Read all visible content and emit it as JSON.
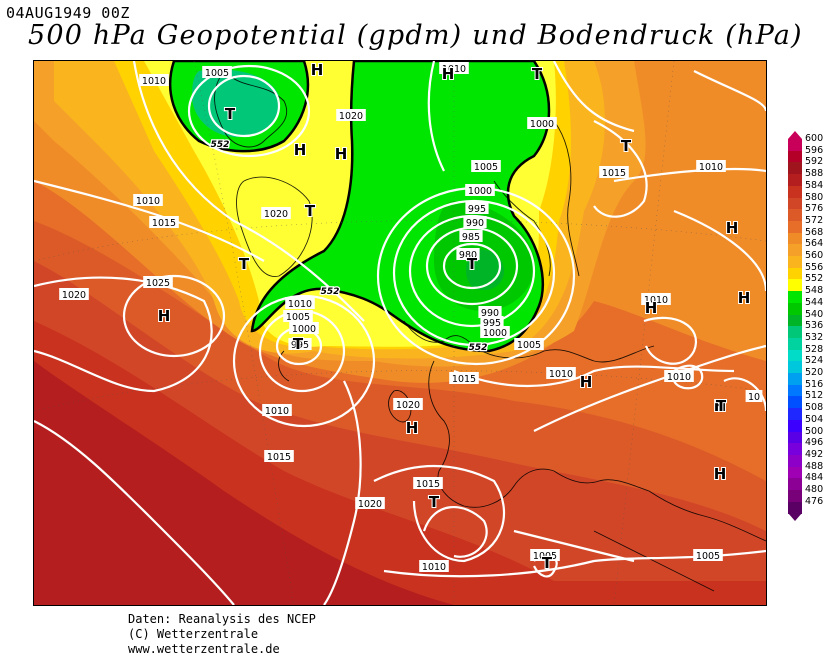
{
  "header": {
    "date": "04AUG1949 00Z",
    "title": "500 hPa Geopotential (gpdm) und Bodendruck (hPa)"
  },
  "credits": {
    "line1": "Daten: Reanalysis des NCEP",
    "line2": "(C) Wetterzentrale",
    "line3": "www.wetterzentrale.de"
  },
  "legend": {
    "levels": [
      {
        "value": "600",
        "color": "#c8005a"
      },
      {
        "value": "596",
        "color": "#b40028"
      },
      {
        "value": "592",
        "color": "#a0141e"
      },
      {
        "value": "588",
        "color": "#b41e1e"
      },
      {
        "value": "584",
        "color": "#c8321e"
      },
      {
        "value": "580",
        "color": "#d24628"
      },
      {
        "value": "576",
        "color": "#dc5a28"
      },
      {
        "value": "572",
        "color": "#e66e28"
      },
      {
        "value": "568",
        "color": "#f08c28"
      },
      {
        "value": "564",
        "color": "#f5a028"
      },
      {
        "value": "560",
        "color": "#fab41e"
      },
      {
        "value": "556",
        "color": "#ffd200"
      },
      {
        "value": "552",
        "color": "#ffff00"
      },
      {
        "value": "548",
        "color": "#00e600"
      },
      {
        "value": "544",
        "color": "#00c800"
      },
      {
        "value": "540",
        "color": "#00b428"
      },
      {
        "value": "536",
        "color": "#00c878"
      },
      {
        "value": "532",
        "color": "#00d2a0"
      },
      {
        "value": "528",
        "color": "#00dcc8"
      },
      {
        "value": "524",
        "color": "#00c8dc"
      },
      {
        "value": "520",
        "color": "#00a0f0"
      },
      {
        "value": "516",
        "color": "#0078ff"
      },
      {
        "value": "512",
        "color": "#0050ff"
      },
      {
        "value": "508",
        "color": "#1e28ff"
      },
      {
        "value": "504",
        "color": "#3c00ff"
      },
      {
        "value": "500",
        "color": "#5a00e6"
      },
      {
        "value": "496",
        "color": "#7800dc"
      },
      {
        "value": "492",
        "color": "#8c00c8"
      },
      {
        "value": "488",
        "color": "#a000b4"
      },
      {
        "value": "484",
        "color": "#8c0096"
      },
      {
        "value": "480",
        "color": "#780078"
      },
      {
        "value": "476",
        "color": "#5a0064"
      }
    ]
  },
  "map": {
    "pressure_labels": [
      {
        "text": "1010"
      },
      {
        "text": "1005"
      },
      {
        "text": "1010"
      },
      {
        "text": "1000"
      },
      {
        "text": "1020"
      },
      {
        "text": "1010"
      },
      {
        "text": "1015"
      },
      {
        "text": "1020"
      },
      {
        "text": "1025"
      },
      {
        "text": "1020"
      },
      {
        "text": "1005"
      },
      {
        "text": "1000"
      },
      {
        "text": "995"
      },
      {
        "text": "990"
      },
      {
        "text": "985"
      },
      {
        "text": "980"
      },
      {
        "text": "990"
      },
      {
        "text": "995"
      },
      {
        "text": "1000"
      },
      {
        "text": "1005"
      },
      {
        "text": "1010"
      },
      {
        "text": "1005"
      },
      {
        "text": "1000"
      },
      {
        "text": "995"
      },
      {
        "text": "1010"
      },
      {
        "text": "1015"
      },
      {
        "text": "1010"
      },
      {
        "text": "1010"
      },
      {
        "text": "1020"
      },
      {
        "text": "1015"
      },
      {
        "text": "1015"
      },
      {
        "text": "1020"
      },
      {
        "text": "1015"
      },
      {
        "text": "1010"
      },
      {
        "text": "1005"
      },
      {
        "text": "1010"
      },
      {
        "text": "1010"
      },
      {
        "text": "1005"
      },
      {
        "text": "10"
      }
    ],
    "contour_labels": [
      {
        "text": "552"
      },
      {
        "text": "552"
      },
      {
        "text": "552"
      }
    ],
    "highs": [
      "H",
      "H",
      "H",
      "H",
      "H",
      "H",
      "H",
      "H",
      "H",
      "H",
      "H",
      "H"
    ],
    "lows": [
      "T",
      "T",
      "T",
      "T",
      "T",
      "T",
      "T",
      "T",
      "T",
      "T"
    ]
  }
}
